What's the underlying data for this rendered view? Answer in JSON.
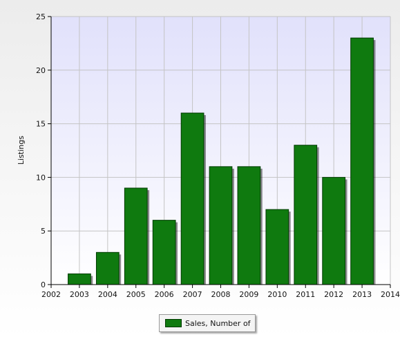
{
  "chart_data": {
    "type": "bar",
    "ylabel": "Listings",
    "xlabel": "",
    "title": "",
    "x_ticks": [
      "2002",
      "2003",
      "2004",
      "2005",
      "2006",
      "2007",
      "2008",
      "2009",
      "2010",
      "2011",
      "2012",
      "2013",
      "2014"
    ],
    "categories": [
      "2003",
      "2004",
      "2005",
      "2006",
      "2007",
      "2008",
      "2009",
      "2010",
      "2011",
      "2012",
      "2013"
    ],
    "series": [
      {
        "name": "Sales, Number of",
        "values": [
          1,
          3,
          9,
          6,
          16,
          11,
          11,
          7,
          13,
          10,
          23
        ],
        "color": "#0f7a0f"
      }
    ],
    "ylim": [
      0,
      25
    ],
    "xlim": [
      2002,
      2014
    ],
    "y_ticks": [
      "0",
      "5",
      "10",
      "15",
      "20",
      "25"
    ],
    "grid": true,
    "legend_position": "bottom-center"
  }
}
